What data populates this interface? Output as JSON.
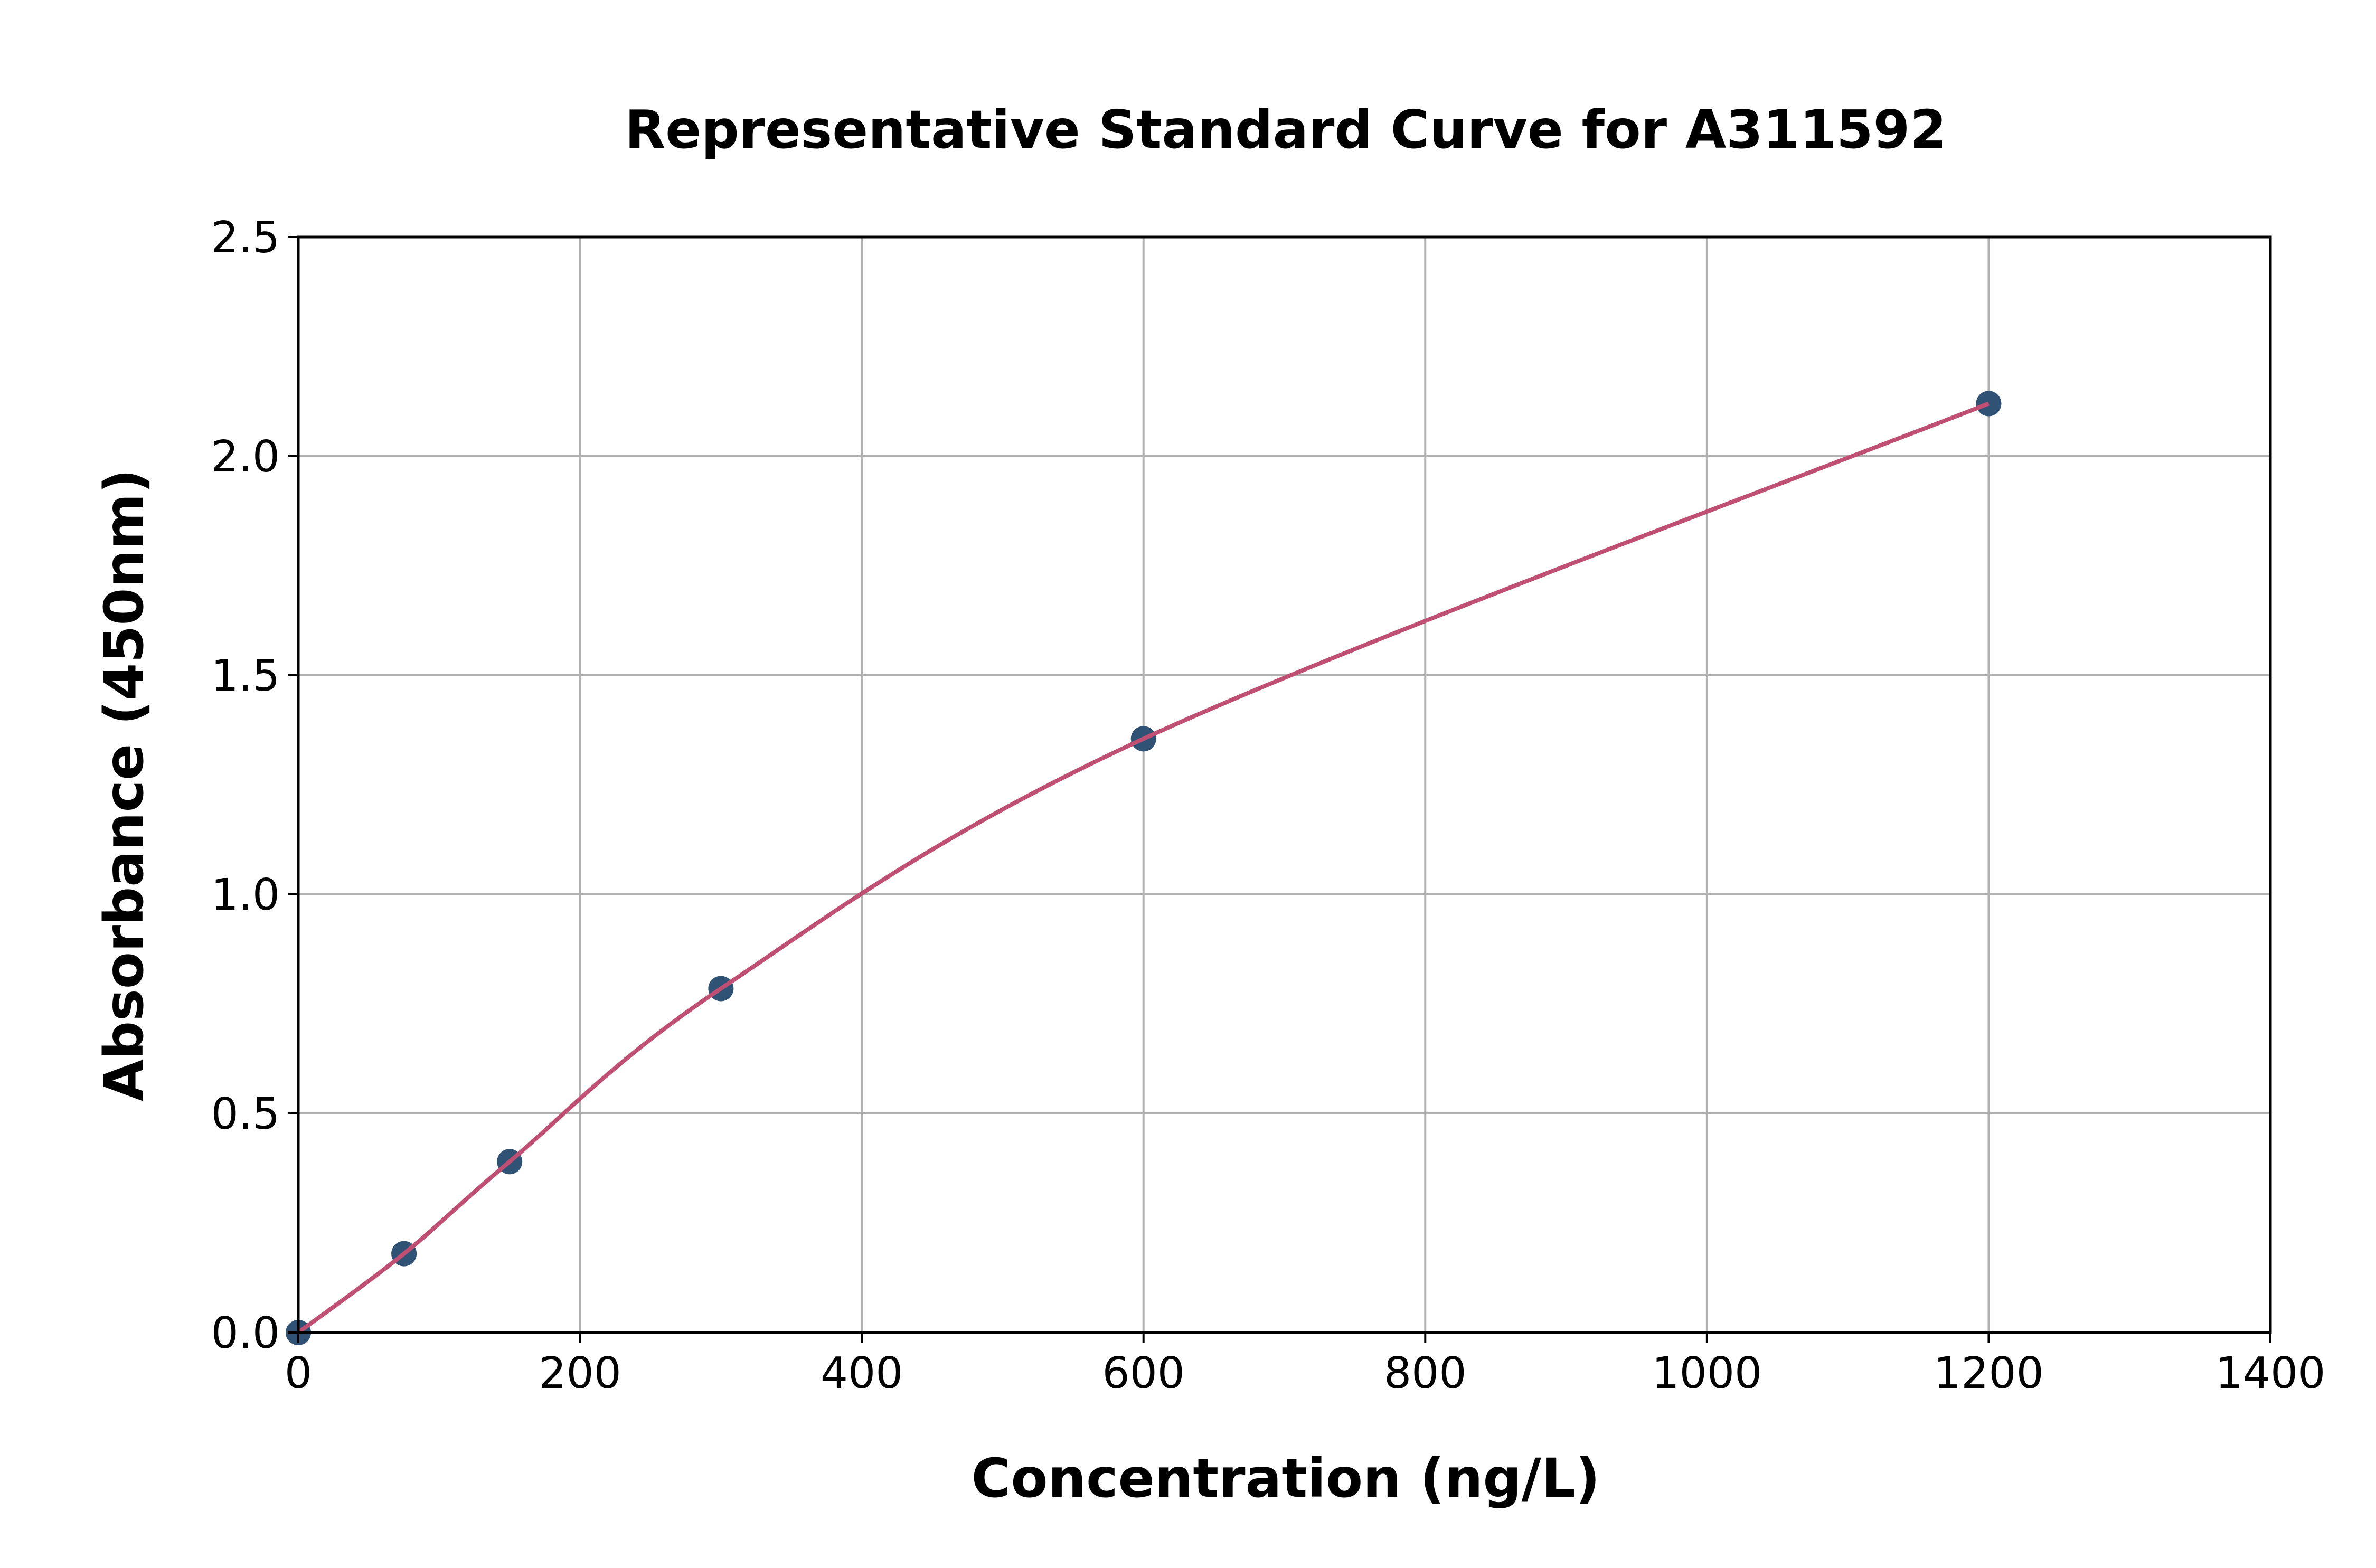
{
  "chart_data": {
    "type": "scatter",
    "title": "Representative Standard Curve for A311592",
    "xlabel": "Concentration (ng/L)",
    "ylabel": "Absorbance (450nm)",
    "xlim": [
      0,
      1400
    ],
    "ylim": [
      0,
      2.5
    ],
    "xticks": [
      "0",
      "200",
      "400",
      "600",
      "800",
      "1000",
      "1200",
      "1400"
    ],
    "yticks": [
      "0.0",
      "0.5",
      "1.0",
      "1.5",
      "2.0",
      "2.5"
    ],
    "grid": true,
    "points": {
      "x": [
        0,
        75,
        150,
        300,
        600,
        1200
      ],
      "y": [
        0.0,
        0.18,
        0.39,
        0.785,
        1.355,
        2.12
      ]
    },
    "fit_curve": true,
    "colors": {
      "points": "#2f5275",
      "curve": "#c04f74",
      "grid": "#b0b0b0"
    }
  }
}
